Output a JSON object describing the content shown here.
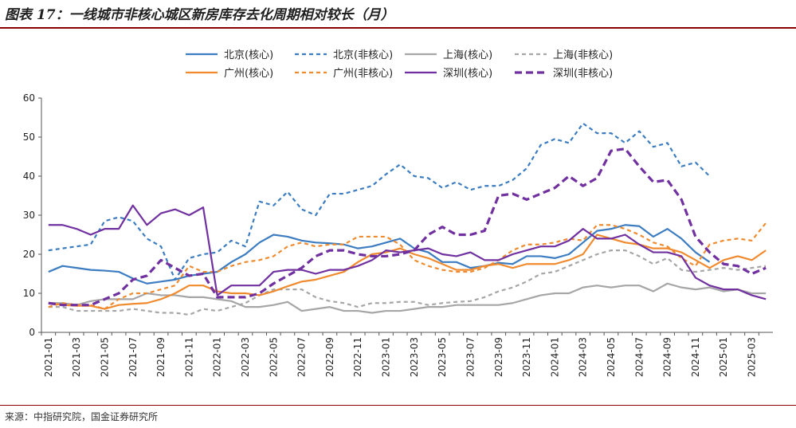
{
  "title": "图表 17：一线城市非核心城区新房库存去化周期相对较长（月）",
  "source": "来源：中指研究院，国金证券研究所",
  "chart_data": {
    "type": "line",
    "x": [
      "2021-01",
      "2021-02",
      "2021-03",
      "2021-04",
      "2021-05",
      "2021-06",
      "2021-07",
      "2021-08",
      "2021-09",
      "2021-10",
      "2021-11",
      "2021-12",
      "2022-01",
      "2022-02",
      "2022-03",
      "2022-04",
      "2022-05",
      "2022-06",
      "2022-07",
      "2022-08",
      "2022-09",
      "2022-10",
      "2022-11",
      "2022-12",
      "2023-01",
      "2023-02",
      "2023-03",
      "2023-04",
      "2023-05",
      "2023-06",
      "2023-07",
      "2023-08",
      "2023-09",
      "2023-10",
      "2023-11",
      "2023-12",
      "2024-01",
      "2024-02",
      "2024-03",
      "2024-04",
      "2024-05",
      "2024-06",
      "2024-07",
      "2024-08",
      "2024-09",
      "2024-10",
      "2024-11",
      "2024-12",
      "2025-01",
      "2025-02",
      "2025-03",
      "2025-04"
    ],
    "x_tick_labels": [
      "2021-01",
      "2021-03",
      "2021-05",
      "2021-07",
      "2021-09",
      "2021-11",
      "2022-01",
      "2022-03",
      "2022-05",
      "2022-07",
      "2022-09",
      "2022-11",
      "2023-01",
      "2023-03",
      "2023-05",
      "2023-07",
      "2023-09",
      "2023-11",
      "2024-01",
      "2024-03",
      "2024-05",
      "2024-07",
      "2024-09",
      "2024-11",
      "2025-01",
      "2025-03"
    ],
    "ylim": [
      0,
      60
    ],
    "yticks": [
      0,
      10,
      20,
      30,
      40,
      50,
      60
    ],
    "legend_position": "top",
    "series": [
      {
        "name": "北京(核心)",
        "color": "#3c7cc0",
        "dash": "solid",
        "width": 2.2,
        "values": [
          15.5,
          17,
          16.5,
          16,
          15.8,
          15.5,
          13.8,
          12.5,
          13,
          13.5,
          14.5,
          15,
          15.5,
          18,
          20,
          23,
          25,
          24.5,
          23.5,
          23,
          22.8,
          22.5,
          21.5,
          22,
          23,
          24,
          21.5,
          20.5,
          18,
          18,
          16.5,
          17,
          17.8,
          17.5,
          19.5,
          19.5,
          19,
          20,
          23,
          26,
          26.5,
          27.5,
          27.2,
          24.5,
          26.5,
          24,
          20.5,
          18,
          null,
          null,
          null,
          null
        ]
      },
      {
        "name": "北京(非核心)",
        "color": "#3c7cc0",
        "dash": "5,4",
        "width": 2.2,
        "values": [
          21,
          21.5,
          22,
          22.5,
          28.5,
          29.5,
          28.5,
          24,
          22,
          13.5,
          19,
          20,
          20.5,
          23.5,
          22,
          33.5,
          32.5,
          36,
          31.5,
          30,
          35.5,
          35.5,
          36.5,
          37.5,
          40.5,
          43,
          40,
          39.5,
          37,
          38.5,
          36.5,
          37.5,
          37.5,
          39,
          42,
          48,
          49.5,
          48.5,
          53.5,
          51,
          51,
          48.5,
          51.5,
          47.5,
          48.5,
          42.5,
          43.5,
          40,
          null,
          null,
          null,
          null
        ]
      },
      {
        "name": "上海(核心)",
        "color": "#a6a6a6",
        "dash": "solid",
        "width": 2.2,
        "values": [
          7.5,
          7.5,
          7,
          8,
          8.5,
          8.5,
          8.5,
          10,
          9.5,
          9.5,
          9,
          9,
          8.5,
          8,
          6.5,
          6.5,
          7,
          7.8,
          5.5,
          6,
          6.5,
          5.5,
          5.5,
          5,
          5.5,
          5.5,
          6,
          6.5,
          6.5,
          7,
          7,
          7,
          7,
          7.5,
          8.5,
          9.5,
          10,
          10,
          11.5,
          12,
          11.5,
          12,
          12,
          10.5,
          12.5,
          11.5,
          11,
          11.5,
          10.5,
          11,
          10,
          10
        ]
      },
      {
        "name": "上海(非核心)",
        "color": "#a6a6a6",
        "dash": "5,4",
        "width": 2.2,
        "values": [
          6.5,
          6.5,
          5.5,
          5.5,
          5.5,
          5.5,
          6,
          5.5,
          5,
          5,
          4.5,
          6,
          5.5,
          6.5,
          7.5,
          9.5,
          11,
          11,
          11,
          9,
          8,
          7.5,
          6.5,
          7.5,
          7.5,
          7.8,
          7.8,
          7,
          7.5,
          7.8,
          8,
          9,
          10.5,
          11.5,
          13,
          15,
          15.5,
          17,
          18.5,
          20,
          21,
          21,
          19.5,
          17.5,
          19,
          16,
          15.5,
          16,
          16.5,
          16,
          16.5,
          17
        ]
      },
      {
        "name": "广州(核心)",
        "color": "#f08a2e",
        "dash": "solid",
        "width": 2.2,
        "values": [
          7.5,
          7,
          6.8,
          6.8,
          6,
          7,
          7.3,
          7.5,
          8.5,
          10,
          12,
          12,
          10.5,
          10,
          10,
          9.5,
          10.5,
          11.8,
          13,
          13.5,
          14.5,
          15.5,
          18,
          20,
          20.5,
          21.5,
          20,
          19,
          17.5,
          16,
          16,
          17,
          17.5,
          16.5,
          17.5,
          17.5,
          17.5,
          18.5,
          20,
          25,
          24,
          23,
          22.5,
          21.5,
          21.5,
          20.5,
          18.5,
          16.5,
          18.5,
          19.5,
          18.5,
          21
        ]
      },
      {
        "name": "广州(非核心)",
        "color": "#f08a2e",
        "dash": "5,4",
        "width": 2.2,
        "values": [
          6.5,
          7.5,
          7,
          7,
          6,
          8.5,
          10,
          10,
          11,
          12,
          17,
          15.5,
          15.5,
          17,
          18,
          18.5,
          19.5,
          22,
          23,
          22,
          22.5,
          22.5,
          24.5,
          24.5,
          24.5,
          22.5,
          18.5,
          17,
          16,
          15.5,
          15.5,
          16.5,
          18.5,
          21,
          22.5,
          22.5,
          23,
          24,
          23.5,
          27.5,
          27.5,
          26.5,
          25,
          23,
          22,
          19,
          17,
          22.5,
          23.5,
          24,
          23.5,
          28
        ]
      },
      {
        "name": "深圳(核心)",
        "color": "#7030a0",
        "dash": "solid",
        "width": 2.2,
        "values": [
          27.5,
          27.5,
          26.5,
          25,
          26.5,
          26.5,
          32.5,
          27.5,
          30.5,
          31.5,
          30,
          32,
          9.5,
          12,
          12,
          12,
          15.5,
          16,
          16,
          15,
          16,
          16,
          17,
          18.5,
          21,
          20.5,
          21,
          21.5,
          20,
          19.5,
          20.5,
          18.5,
          18.5,
          20,
          21,
          22,
          22,
          23.5,
          26.5,
          24,
          24,
          25,
          22.5,
          20.5,
          20.5,
          19.5,
          14,
          12,
          11,
          11,
          9.5,
          8.5
        ]
      },
      {
        "name": "深圳(非核心)",
        "color": "#7030a0",
        "dash": "9,5",
        "width": 3.2,
        "values": [
          7.5,
          7,
          7,
          7,
          8.5,
          10,
          13.5,
          14.5,
          18.5,
          16.5,
          14.5,
          15,
          9,
          9,
          9,
          10,
          12.5,
          14.5,
          16.5,
          19.5,
          21,
          21,
          20,
          19.5,
          19.5,
          20,
          21,
          25,
          27,
          25,
          25,
          26,
          35,
          35.5,
          34,
          35.5,
          37,
          40,
          37.5,
          39.5,
          46.5,
          47,
          42.5,
          38.5,
          39,
          34,
          24.5,
          20.5,
          17.5,
          17,
          15,
          16.5
        ]
      }
    ]
  }
}
